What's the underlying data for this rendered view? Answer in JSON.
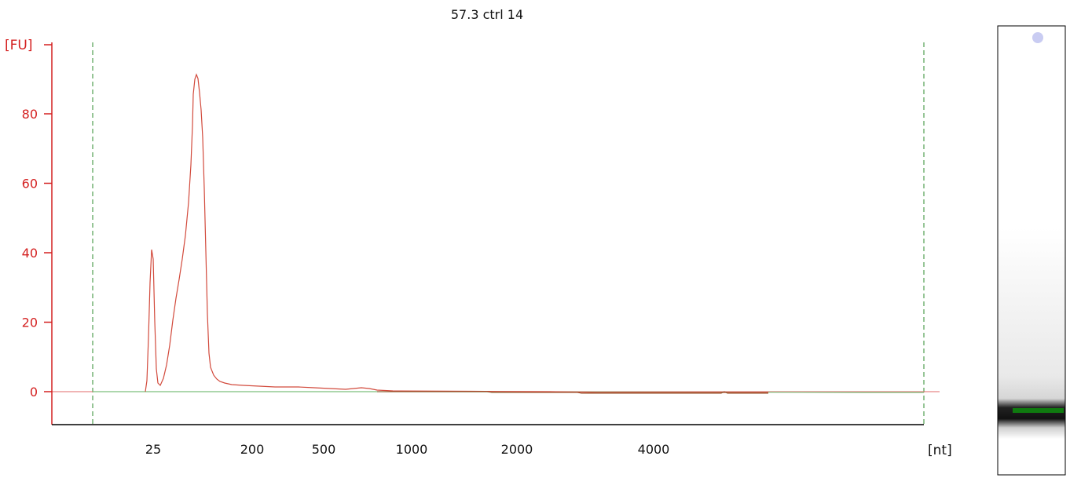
{
  "chart_data": {
    "type": "line",
    "title": "57.3 ctrl 14",
    "ylabel": "[FU]",
    "xlabel": "[nt]",
    "ylim": [
      -10,
      100
    ],
    "y_ticks": [
      0,
      20,
      40,
      60,
      80
    ],
    "x_ticks": [
      "25",
      "200",
      "500",
      "1000",
      "2000",
      "4000"
    ],
    "grid": false,
    "colors": {
      "y_axis": "#d42020",
      "x_axis": "#000000",
      "sample_trace": "#d24a3c",
      "baseline": "#7cbf7c",
      "marker_lines": "#2e8b2e",
      "lower_marker_band": "#0f7a0f"
    },
    "series": [
      {
        "values": [
          {
            "x": "25",
            "y": 0
          },
          {
            "x": "25",
            "y": 41
          },
          {
            "x": "25",
            "y": 2
          },
          {
            "x": "",
            "y": 22
          },
          {
            "x": "",
            "y": 91
          },
          {
            "x": "",
            "y": 4
          },
          {
            "x": "200",
            "y": 2
          },
          {
            "x": "500",
            "y": 1
          },
          {
            "x": "1000",
            "y": 0
          },
          {
            "x": "2000",
            "y": 0
          },
          {
            "x": "4000",
            "y": 0
          }
        ]
      }
    ]
  }
}
